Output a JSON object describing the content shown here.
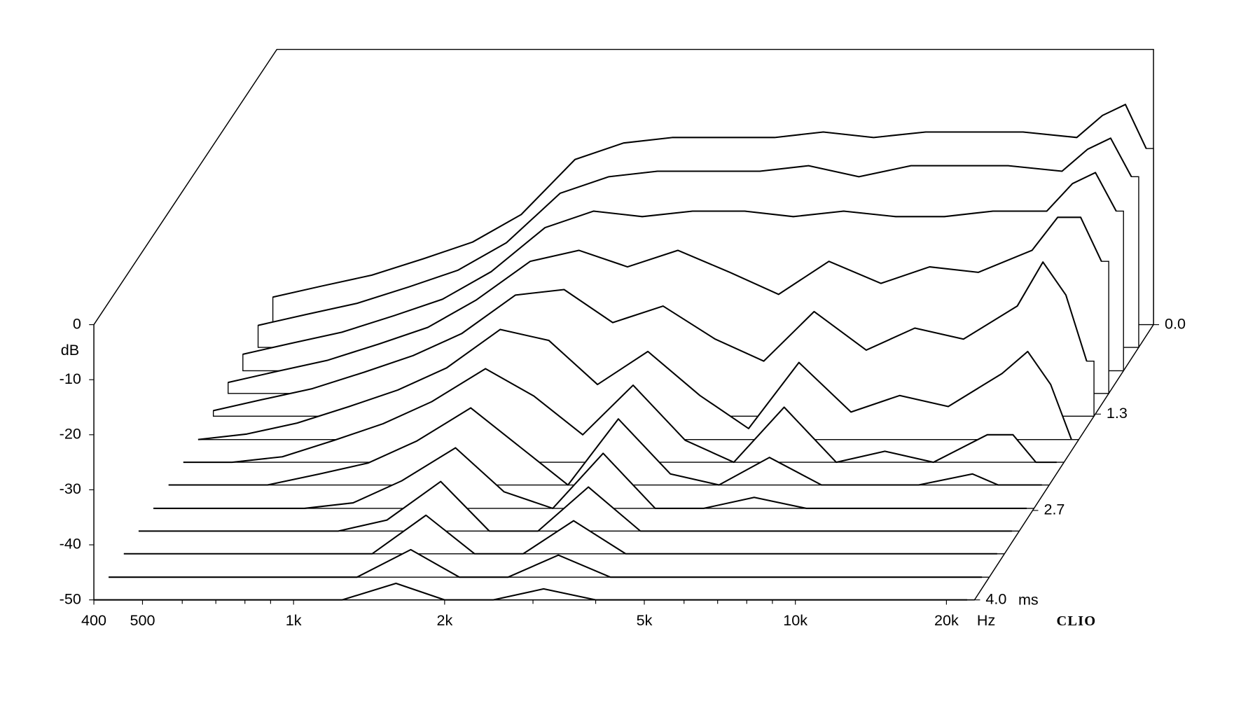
{
  "chart_data": {
    "type": "waterfall",
    "xlabel": "Hz",
    "ylabel": "dB",
    "zlabel": "ms",
    "brand": "CLIO",
    "log_x": true,
    "xlim": [
      400,
      22750
    ],
    "ylim": [
      -50,
      0
    ],
    "zlim": [
      0,
      4
    ],
    "xticks": [
      400,
      500,
      {
        "value": 1000,
        "label": "1k"
      },
      {
        "value": 2000,
        "label": "2k"
      },
      {
        "value": 5000,
        "label": "5k"
      },
      {
        "value": 10000,
        "label": "10k"
      },
      {
        "value": 20000,
        "label": "20k"
      }
    ],
    "xminor": [
      600,
      700,
      800,
      900,
      3000,
      4000,
      6000,
      7000,
      8000,
      9000
    ],
    "yticks": [
      0,
      -10,
      -20,
      -30,
      -40,
      -50
    ],
    "zticks": [
      {
        "value": 0,
        "label": "0.0"
      },
      1.3,
      2.7,
      {
        "value": 4,
        "label": "4.0"
      }
    ],
    "color": "#000000",
    "x": [
      400,
      500,
      630,
      800,
      1000,
      1250,
      1600,
      2000,
      2500,
      3150,
      4000,
      5000,
      6300,
      8000,
      10000,
      12500,
      16000,
      18000,
      20000,
      22000
    ],
    "z": [
      0,
      0.33,
      0.67,
      1.0,
      1.33,
      1.67,
      2.0,
      2.33,
      2.67,
      3.0,
      3.33,
      3.67,
      4.0
    ],
    "series": [
      {
        "values": [
          -45,
          -43,
          -41,
          -38,
          -35,
          -30,
          -20,
          -17,
          -16,
          -16,
          -16,
          -15,
          -16,
          -15,
          -15,
          -15,
          -16,
          -12,
          -10,
          -18
        ]
      },
      {
        "values": [
          -46,
          -44,
          -42,
          -39,
          -36,
          -31,
          -22,
          -19,
          -18,
          -18,
          -18,
          -17,
          -19,
          -17,
          -17,
          -17,
          -18,
          -14,
          -12,
          -19
        ]
      },
      {
        "values": [
          -47,
          -45,
          -43,
          -40,
          -37,
          -32,
          -24,
          -21,
          -22,
          -21,
          -21,
          -22,
          -21,
          -22,
          -22,
          -21,
          -21,
          -16,
          -14,
          -21
        ]
      },
      {
        "values": [
          -48,
          -46,
          -44,
          -41,
          -38,
          -33,
          -26,
          -24,
          -27,
          -24,
          -28,
          -32,
          -26,
          -30,
          -27,
          -28,
          -24,
          -18,
          -18,
          -26
        ]
      },
      {
        "values": [
          -49,
          -47,
          -45,
          -42,
          -39,
          -35,
          -28,
          -27,
          -33,
          -30,
          -36,
          -40,
          -31,
          -38,
          -34,
          -36,
          -30,
          -22,
          -28,
          -40
        ]
      },
      {
        "values": [
          -50,
          -49,
          -47,
          -44,
          -41,
          -37,
          -30,
          -32,
          -40,
          -34,
          -42,
          -48,
          -36,
          -45,
          -42,
          -44,
          -38,
          -34,
          -40,
          -50
        ]
      },
      {
        "values": [
          -50,
          -50,
          -49,
          -46,
          -43,
          -39,
          -33,
          -38,
          -45,
          -36,
          -46,
          -50,
          -40,
          -50,
          -48,
          -50,
          -45,
          -45,
          -50,
          -50
        ]
      },
      {
        "values": [
          -50,
          -50,
          -50,
          -48,
          -46,
          -42,
          -36,
          -43,
          -50,
          -38,
          -48,
          -50,
          -45,
          -50,
          -50,
          -50,
          -48,
          -50,
          -50,
          -50
        ]
      },
      {
        "values": [
          -50,
          -50,
          -50,
          -50,
          -49,
          -45,
          -39,
          -47,
          -50,
          -40,
          -50,
          -50,
          -48,
          -50,
          -50,
          -50,
          -50,
          -50,
          -50,
          -50
        ]
      },
      {
        "values": [
          -50,
          -50,
          -50,
          -50,
          -50,
          -48,
          -41,
          -50,
          -50,
          -42,
          -50,
          -50,
          -50,
          -50,
          -50,
          -50,
          -50,
          -50,
          -50,
          -50
        ]
      },
      {
        "values": [
          -50,
          -50,
          -50,
          -50,
          -50,
          -50,
          -43,
          -50,
          -50,
          -44,
          -50,
          -50,
          -50,
          -50,
          -50,
          -50,
          -50,
          -50,
          -50,
          -50
        ]
      },
      {
        "values": [
          -50,
          -50,
          -50,
          -50,
          -50,
          -50,
          -45,
          -50,
          -50,
          -46,
          -50,
          -50,
          -50,
          -50,
          -50,
          -50,
          -50,
          -50,
          -50,
          -50
        ]
      },
      {
        "values": [
          -50,
          -50,
          -50,
          -50,
          -50,
          -50,
          -47,
          -50,
          -50,
          -48,
          -50,
          -50,
          -50,
          -50,
          -50,
          -50,
          -50,
          -50,
          -50,
          -50
        ]
      }
    ]
  }
}
